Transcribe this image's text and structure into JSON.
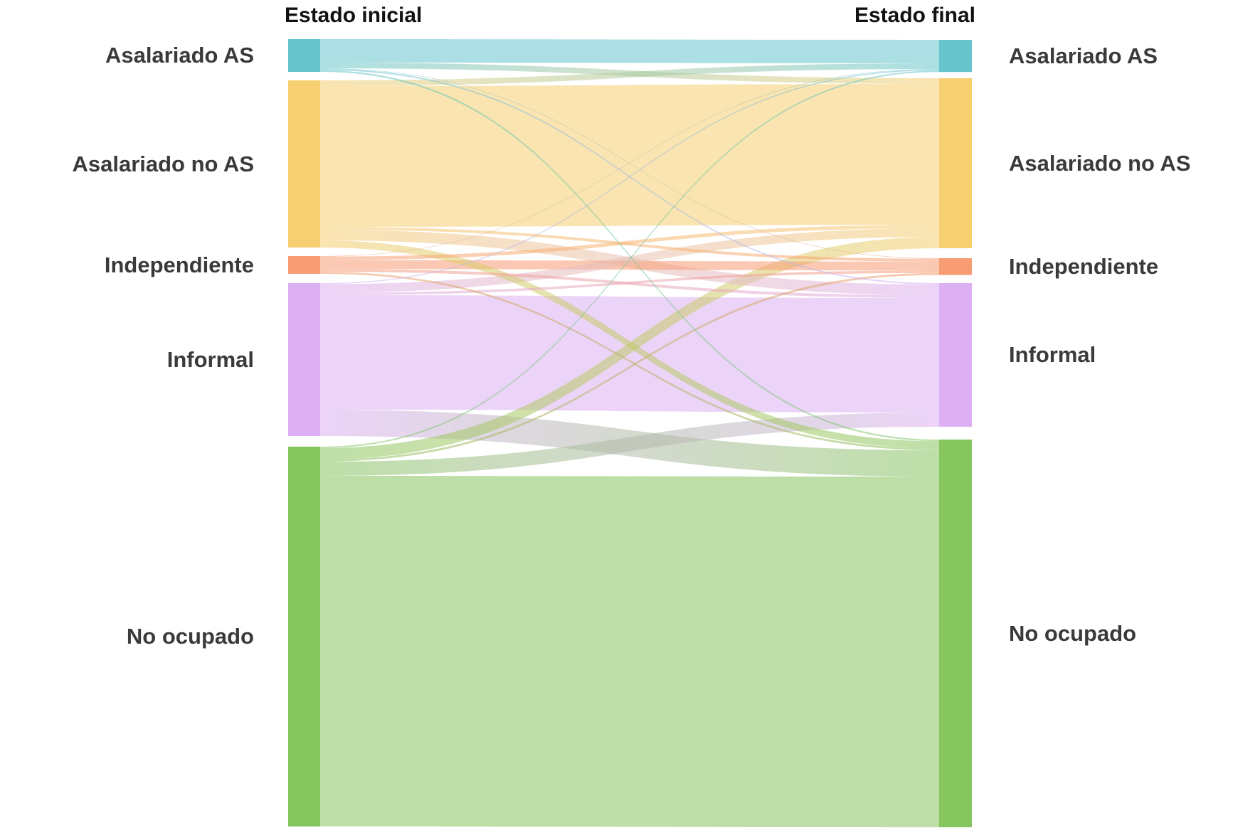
{
  "chart_data": {
    "type": "sankey",
    "column_titles": {
      "initial": "Estado inicial",
      "final": "Estado final"
    },
    "categories": [
      "Asalariado AS",
      "Asalariado no AS",
      "Independiente",
      "Informal",
      "No ocupado"
    ],
    "category_ids": [
      "asalariado-as",
      "asalariado-no-as",
      "independiente",
      "informal",
      "no-ocupado"
    ],
    "node_colors": [
      "#66C5CC",
      "#F6CF71",
      "#F89C74",
      "#DCB0F2",
      "#87C55F"
    ],
    "label_color": "#3A3A3A",
    "title_color": "#111111",
    "legend_position": "none",
    "grid": false,
    "flows": {
      "units": "relative transition magnitude (proportional to band thickness)",
      "rows_are_initial_state": true,
      "matrix": [
        [
          33,
          8,
          0.7,
          2,
          2.3
        ],
        [
          8,
          198,
          4,
          15,
          10
        ],
        [
          0.7,
          5,
          12.5,
          4,
          2.8
        ],
        [
          1.5,
          12,
          3.5,
          161,
          37
        ],
        [
          2,
          16,
          3,
          20,
          493
        ]
      ]
    }
  }
}
